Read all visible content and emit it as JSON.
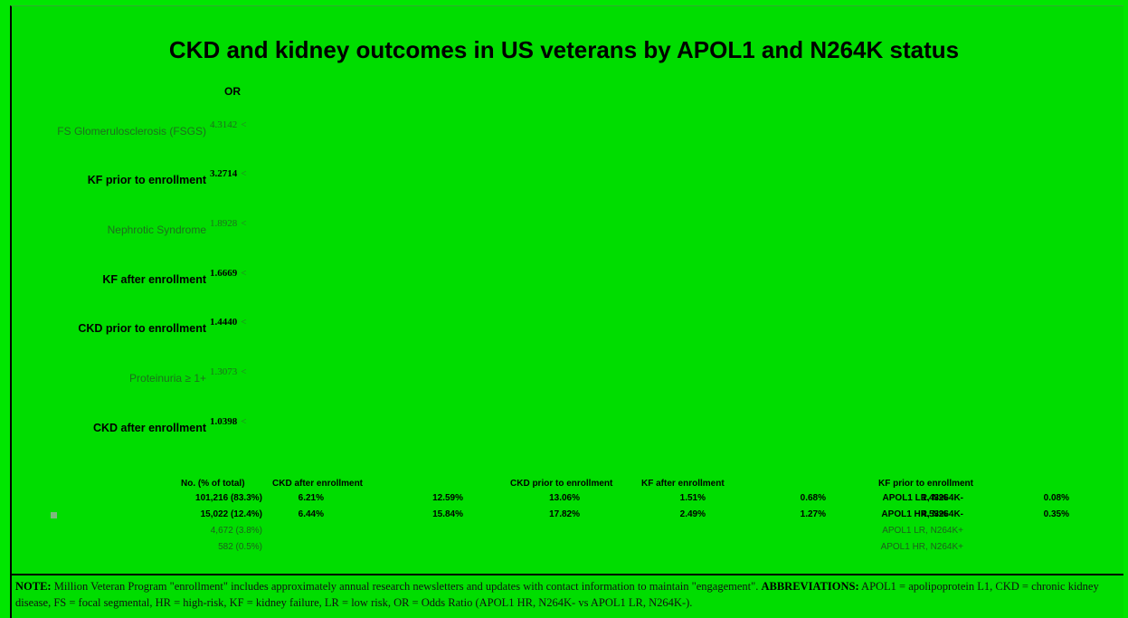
{
  "chart_data": {
    "type": "table",
    "title": "CKD and kidney outcomes in US veterans by APOL1 and N264K status",
    "or_header": "OR",
    "or_rows": [
      {
        "label": "FS Glomerulosclerosis (FSGS)",
        "or": "4.3142",
        "emphasis": false
      },
      {
        "label": "KF prior to enrollment",
        "or": "3.2714",
        "emphasis": true
      },
      {
        "label": "Nephrotic Syndrome",
        "or": "1.8928",
        "emphasis": false
      },
      {
        "label": "KF after enrollment",
        "or": "1.6669",
        "emphasis": true
      },
      {
        "label": "CKD prior to enrollment",
        "or": "1.4440",
        "emphasis": true
      },
      {
        "label": "Proteinuria ≥ 1+",
        "or": "1.3073",
        "emphasis": false
      },
      {
        "label": "CKD after enrollment",
        "or": "1.0398",
        "emphasis": true
      }
    ],
    "tick_glyph": "<",
    "table_headers": {
      "count": "No. (% of total)",
      "ckd_after": "CKD after enrollment",
      "ckd_prior": "CKD prior to enrollment",
      "kf_after": "KF after enrollment",
      "kf_prior": "KF prior to enrollment"
    },
    "table_rows": [
      {
        "group": "APOL1 LR, N264K-",
        "count": "101,216 (83.3%)",
        "values": [
          "6.21%",
          "12.59%",
          "13.06%",
          "1.51%",
          "0.68%",
          "1.43%",
          "0.08%"
        ],
        "emphasis": true
      },
      {
        "group": "APOL1 HR, N264K-",
        "count": "15,022 (12.4%)",
        "values": [
          "6.44%",
          "15.84%",
          "17.82%",
          "2.49%",
          "1.27%",
          "4.53%",
          "0.35%"
        ],
        "emphasis": true
      },
      {
        "group": "APOL1 LR, N264K+",
        "count": "4,672 (3.8%)",
        "values": [],
        "emphasis": false
      },
      {
        "group": "APOL1 HR, N264K+",
        "count": "582 (0.5%)",
        "values": [],
        "emphasis": false
      }
    ]
  },
  "note": {
    "note_label": "NOTE:",
    "note_text": " Million Veteran Program \"enrollment\" includes approximately annual research newsletters and updates with contact information to maintain \"engagement\". ",
    "abbr_label": "ABBREVIATIONS:",
    "abbr_text": " APOL1 = apolipoprotein L1, CKD = chronic kidney disease, FS = focal segmental,  HR = high-risk, KF = kidney failure, LR = low risk, OR = Odds Ratio (APOL1 HR, N264K- vs APOL1 LR, N264K-)."
  },
  "colors": {
    "background": "#00dd00",
    "dim_text": "#1e6e1e"
  }
}
